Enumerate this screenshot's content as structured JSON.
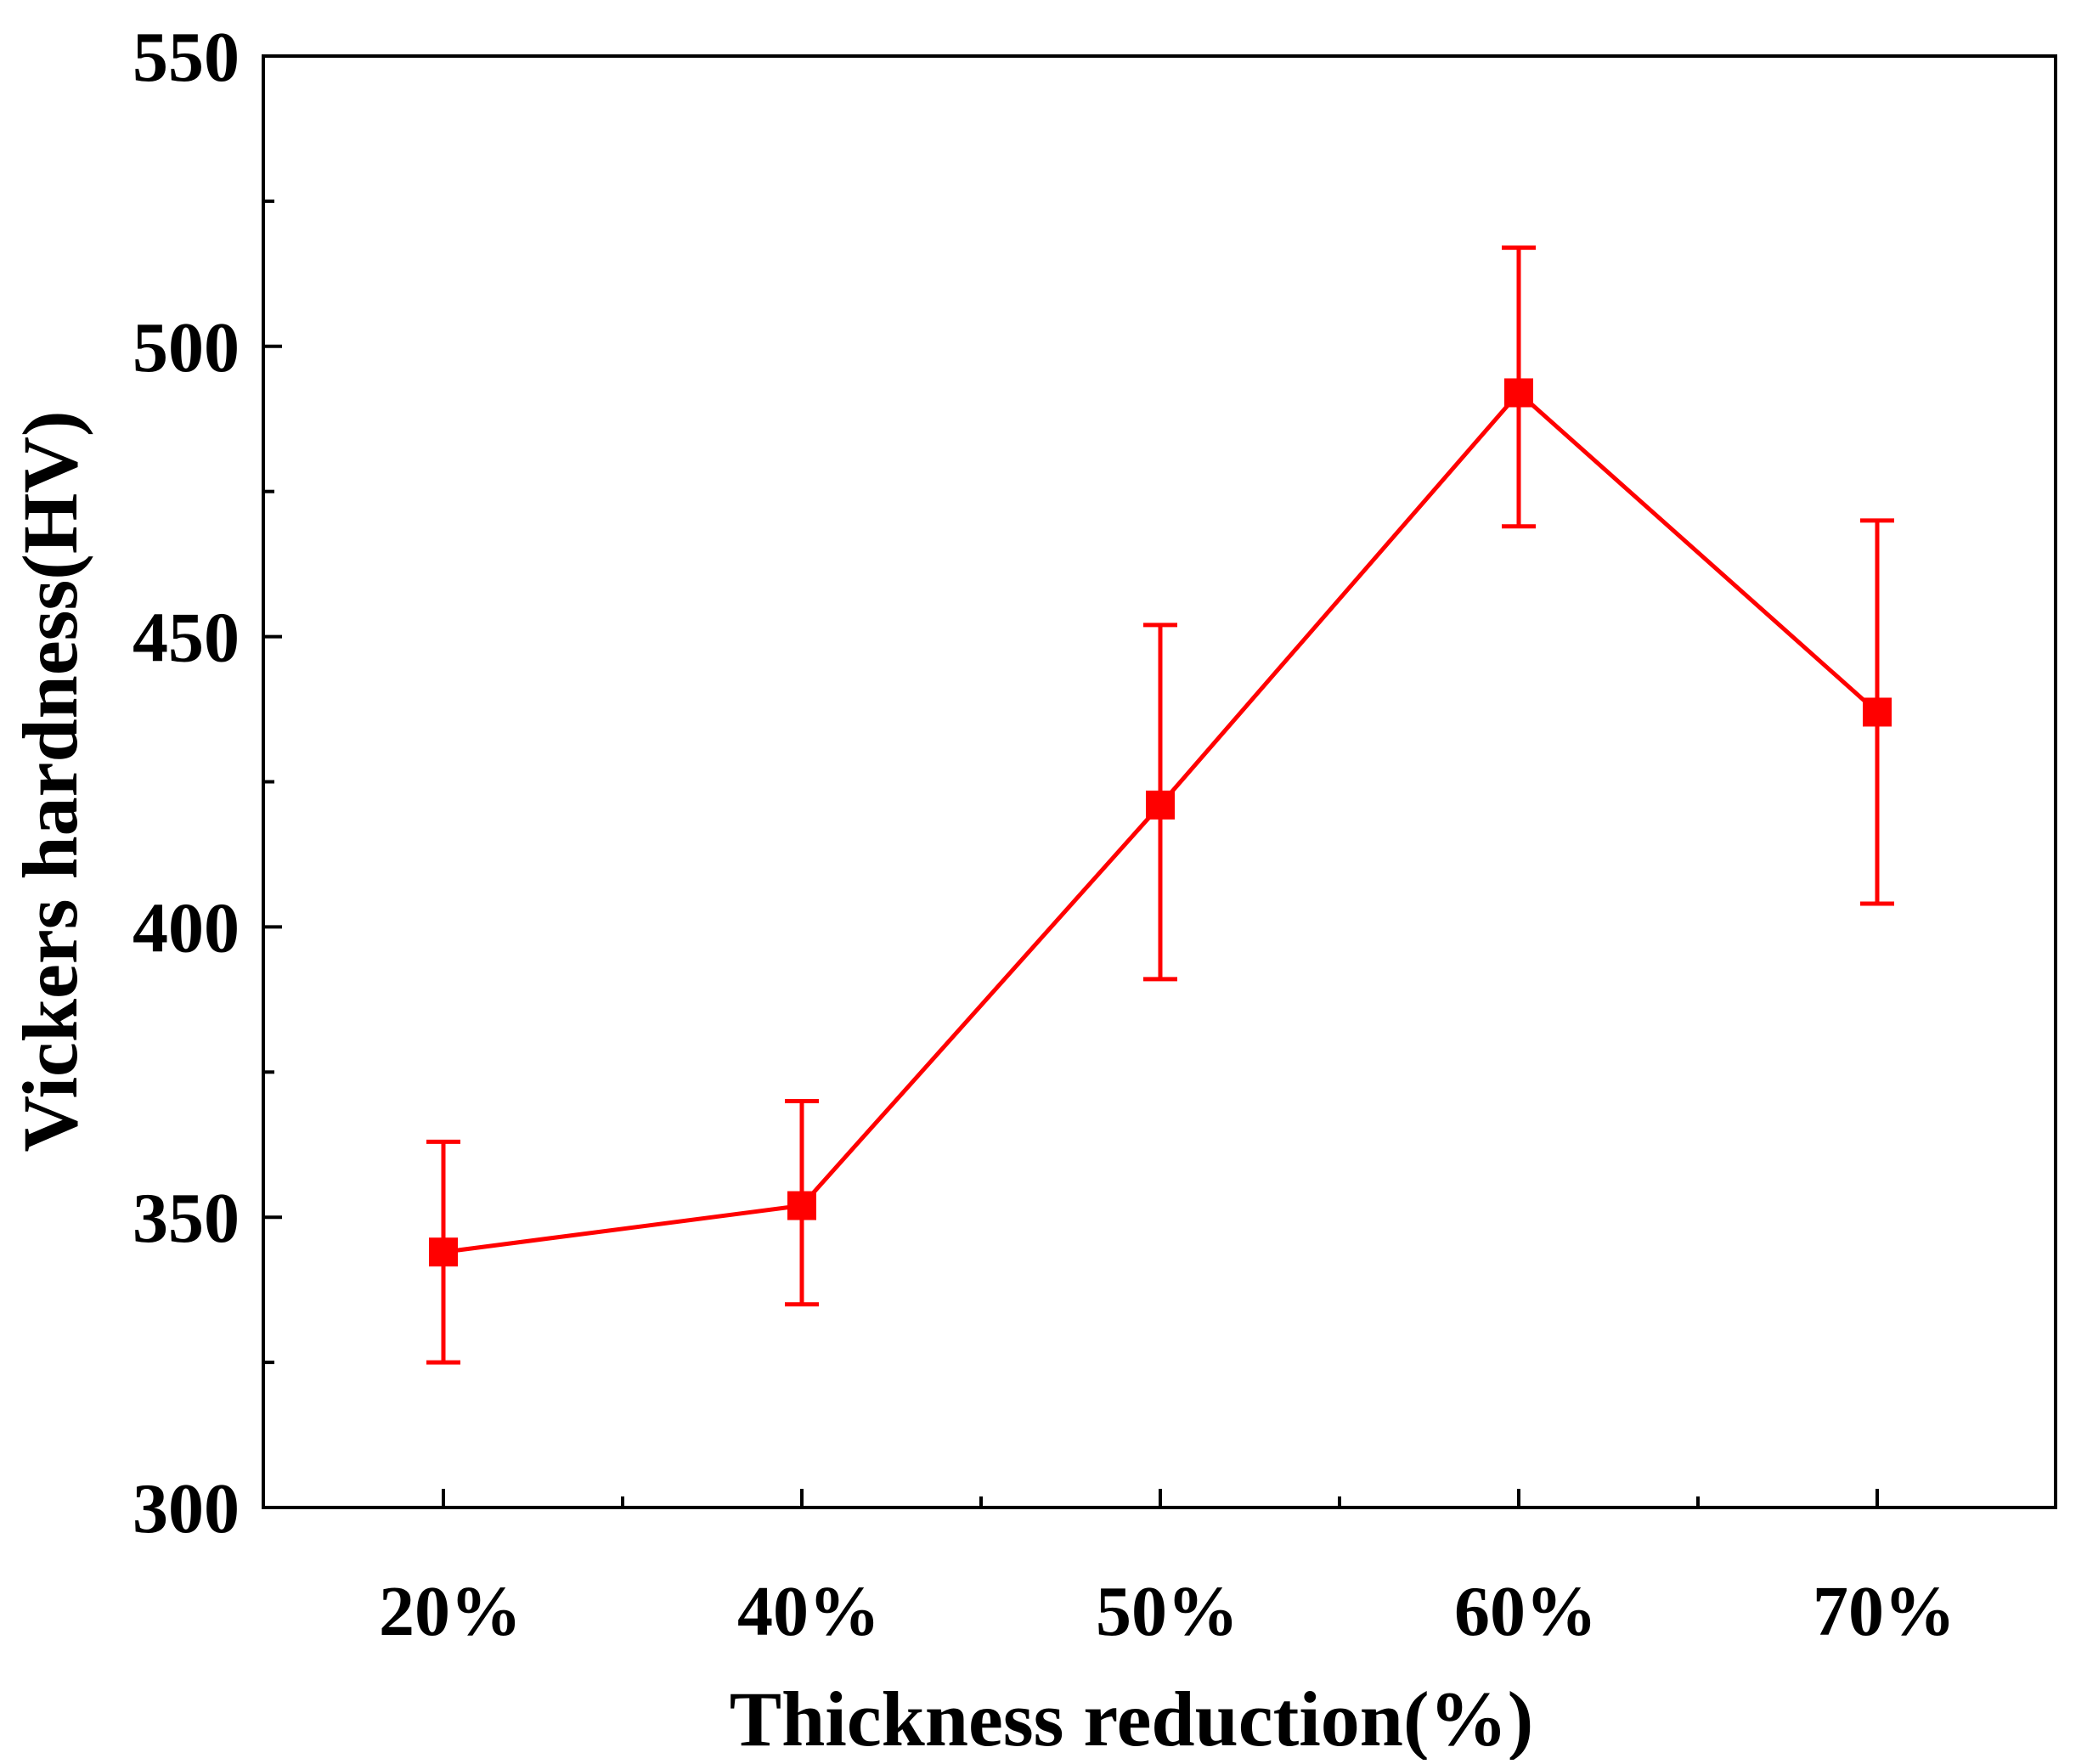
{
  "chart_data": {
    "type": "line",
    "title": "",
    "xlabel": "Thickness reduction(%)",
    "ylabel": "Vickers hardness(HV)",
    "categories": [
      "20%",
      "40%",
      "50%",
      "60%",
      "70%"
    ],
    "ylim": [
      300,
      550
    ],
    "yticks": [
      300,
      350,
      400,
      450,
      500,
      550
    ],
    "ytick_labels": [
      "300",
      "350",
      "400",
      "450",
      "500",
      "550"
    ],
    "grid": false,
    "legend": "none",
    "series": [
      {
        "name": "Vickers hardness",
        "color": "#ff0000",
        "marker": "square",
        "values": [
          344,
          352,
          421,
          492,
          437
        ],
        "error_low": [
          325,
          335,
          391,
          469,
          404
        ],
        "error_high": [
          363,
          370,
          452,
          517,
          470
        ]
      }
    ]
  }
}
